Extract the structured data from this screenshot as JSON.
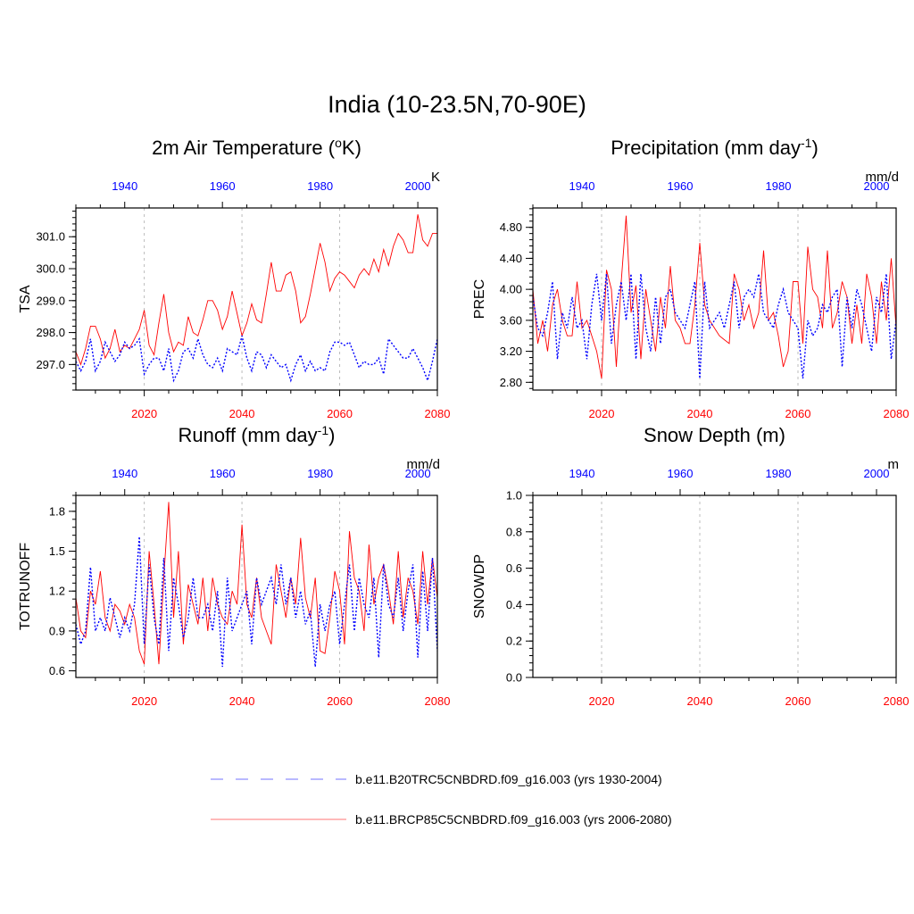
{
  "title": "India (10-23.5N,70-90E)",
  "legend": [
    {
      "label": "b.e11.B20TRC5CNBDRD.f09_g16.003 (yrs 1930-2004)",
      "color": "#0000ff",
      "dash": "dashed"
    },
    {
      "label": "b.e11.BRCP85C5CNBDRD.f09_g16.003 (yrs 2006-2080)",
      "color": "#ff0000",
      "dash": "solid"
    }
  ],
  "colors": {
    "historical": "#0000ff",
    "future": "#ff0000",
    "axis": "#000000",
    "grid": "#bbbbbb"
  },
  "chart_data": [
    {
      "type": "line",
      "title": "2m Air Temperature (°K)",
      "title_sup": "o",
      "title_pre": "2m Air Temperature (",
      "title_post": "K)",
      "ylabel": "TSA",
      "unit": "K",
      "ylim": [
        296.2,
        301.9
      ],
      "yticks": [
        297.0,
        298.0,
        299.0,
        300.0,
        301.0
      ],
      "ytick_labels": [
        "297.0",
        "298.0",
        "299.0",
        "300.0",
        "301.0"
      ],
      "x_bottom": {
        "range": [
          2006,
          2080
        ],
        "ticks": [
          2020,
          2040,
          2060,
          2080
        ]
      },
      "x_top": {
        "range": [
          1930,
          2004
        ],
        "ticks": [
          1940,
          1960,
          1980,
          2000
        ]
      },
      "grid": "vertical dotted at major x ticks",
      "series": [
        {
          "period": "2006-2080",
          "style": "solid red",
          "values": [
            297.4,
            297.0,
            297.5,
            298.2,
            298.2,
            297.8,
            297.2,
            297.5,
            298.1,
            297.4,
            297.6,
            297.5,
            297.8,
            298.1,
            298.7,
            297.6,
            297.3,
            298.3,
            299.2,
            298.0,
            297.4,
            297.7,
            297.6,
            298.5,
            298.0,
            297.9,
            298.4,
            299.0,
            299.0,
            298.7,
            298.1,
            298.5,
            299.3,
            298.6,
            297.9,
            298.3,
            298.9,
            298.4,
            298.3,
            299.2,
            300.2,
            299.3,
            299.3,
            299.8,
            299.9,
            299.3,
            298.3,
            298.5,
            299.2,
            300.0,
            300.8,
            300.2,
            299.3,
            299.7,
            299.9,
            299.8,
            299.6,
            299.4,
            299.8,
            300.0,
            299.8,
            300.3,
            299.9,
            300.6,
            300.1,
            300.7,
            301.1,
            300.9,
            300.5,
            300.5,
            301.7,
            300.9,
            300.7,
            301.1,
            301.1
          ]
        },
        {
          "period": "1930-2004",
          "style": "dashed blue",
          "values": [
            297.1,
            296.8,
            297.1,
            297.8,
            296.8,
            297.1,
            297.7,
            297.4,
            297.1,
            297.3,
            297.7,
            297.5,
            297.6,
            297.8,
            296.7,
            297.0,
            297.2,
            297.2,
            296.8,
            297.5,
            296.5,
            296.8,
            297.4,
            297.5,
            297.2,
            297.8,
            297.3,
            297.0,
            296.9,
            297.2,
            296.8,
            297.5,
            297.4,
            297.3,
            297.9,
            297.2,
            296.8,
            297.4,
            297.3,
            296.9,
            297.3,
            297.1,
            296.9,
            297.0,
            296.5,
            297.0,
            297.3,
            296.8,
            297.1,
            296.8,
            296.9,
            296.8,
            297.4,
            297.7,
            297.7,
            297.6,
            297.7,
            297.3,
            296.9,
            297.1,
            297.0,
            297.0,
            297.2,
            296.7,
            297.8,
            297.6,
            297.4,
            297.2,
            297.2,
            297.5,
            297.2,
            296.9,
            296.5,
            297.1,
            297.8
          ]
        }
      ]
    },
    {
      "type": "line",
      "title": "Precipitation (mm day-1)",
      "title_pre": "Precipitation (mm day",
      "title_sup": "-1",
      "title_post": ")",
      "ylabel": "PREC",
      "unit": "mm/d",
      "ylim": [
        2.7,
        5.05
      ],
      "yticks": [
        2.8,
        3.2,
        3.6,
        4.0,
        4.4,
        4.8
      ],
      "ytick_labels": [
        "2.80",
        "3.20",
        "3.60",
        "4.00",
        "4.40",
        "4.80"
      ],
      "x_bottom": {
        "range": [
          2006,
          2080
        ],
        "ticks": [
          2020,
          2040,
          2060,
          2080
        ]
      },
      "x_top": {
        "range": [
          1930,
          2004
        ],
        "ticks": [
          1940,
          1960,
          1980,
          2000
        ]
      },
      "grid": "vertical dotted at major x ticks",
      "series": [
        {
          "period": "2006-2080",
          "style": "solid red",
          "values": [
            4.0,
            3.3,
            3.6,
            3.2,
            3.8,
            4.0,
            3.6,
            3.4,
            3.4,
            4.1,
            3.5,
            3.6,
            3.4,
            3.2,
            2.85,
            4.25,
            4.0,
            3.0,
            4.1,
            4.95,
            3.7,
            4.05,
            3.1,
            4.0,
            3.6,
            3.2,
            3.9,
            3.5,
            4.3,
            3.6,
            3.5,
            3.3,
            3.3,
            3.8,
            4.6,
            3.8,
            3.6,
            3.5,
            3.4,
            3.35,
            3.3,
            4.2,
            4.0,
            3.6,
            3.8,
            3.5,
            3.7,
            4.5,
            3.6,
            3.7,
            3.4,
            3.0,
            3.2,
            4.1,
            4.1,
            3.3,
            4.55,
            4.0,
            3.9,
            3.5,
            4.5,
            3.5,
            3.7,
            4.1,
            3.9,
            3.3,
            3.8,
            3.3,
            4.2,
            3.9,
            3.3,
            4.1,
            3.6,
            4.4,
            3.5
          ]
        },
        {
          "period": "1930-2004",
          "style": "dashed blue",
          "values": [
            3.9,
            3.5,
            3.4,
            3.7,
            4.1,
            3.1,
            3.7,
            3.5,
            3.9,
            3.5,
            3.6,
            3.1,
            3.8,
            4.2,
            3.6,
            4.2,
            3.3,
            3.8,
            4.1,
            3.6,
            4.2,
            3.1,
            4.2,
            3.5,
            3.2,
            3.9,
            3.3,
            3.9,
            4.0,
            3.7,
            3.6,
            3.5,
            3.8,
            4.1,
            2.85,
            4.1,
            3.5,
            3.6,
            3.7,
            3.5,
            3.8,
            4.1,
            3.5,
            3.9,
            4.0,
            3.9,
            4.2,
            3.7,
            3.6,
            3.5,
            3.8,
            4.0,
            3.7,
            3.6,
            3.5,
            2.85,
            3.6,
            3.4,
            3.5,
            3.8,
            3.7,
            3.9,
            4.0,
            3.0,
            3.9,
            3.5,
            4.0,
            3.8,
            3.5,
            3.2,
            3.9,
            3.7,
            4.2,
            3.1,
            3.6
          ]
        }
      ]
    },
    {
      "type": "line",
      "title": "Runoff (mm day-1)",
      "title_pre": "Runoff (mm day",
      "title_sup": "-1",
      "title_post": ")",
      "ylabel": "TOTRUNOFF",
      "unit": "mm/d",
      "ylim": [
        0.55,
        1.92
      ],
      "yticks": [
        0.6,
        0.9,
        1.2,
        1.5,
        1.8
      ],
      "ytick_labels": [
        "0.6",
        "0.9",
        "1.2",
        "1.5",
        "1.8"
      ],
      "x_bottom": {
        "range": [
          2006,
          2080
        ],
        "ticks": [
          2020,
          2040,
          2060,
          2080
        ]
      },
      "x_top": {
        "range": [
          1930,
          2004
        ],
        "ticks": [
          1940,
          1960,
          1980,
          2000
        ]
      },
      "grid": "vertical dotted at major x ticks",
      "series": [
        {
          "period": "2006-2080",
          "style": "solid red",
          "values": [
            1.15,
            0.9,
            0.85,
            1.2,
            1.1,
            1.35,
            1.0,
            0.9,
            1.1,
            1.05,
            0.95,
            1.1,
            1.0,
            0.75,
            0.65,
            1.5,
            1.1,
            0.65,
            1.3,
            1.87,
            1.0,
            1.5,
            0.8,
            1.25,
            1.1,
            0.95,
            1.3,
            0.9,
            1.3,
            1.1,
            1.0,
            0.95,
            1.2,
            1.1,
            1.7,
            1.1,
            1.0,
            1.3,
            1.0,
            0.9,
            0.8,
            1.4,
            1.2,
            1.0,
            1.3,
            1.1,
            1.6,
            1.15,
            1.0,
            1.3,
            0.75,
            0.73,
            1.0,
            1.35,
            1.2,
            0.8,
            1.65,
            1.3,
            1.2,
            0.9,
            1.55,
            1.1,
            1.3,
            1.4,
            1.2,
            0.95,
            1.5,
            1.0,
            1.3,
            1.2,
            0.95,
            1.5,
            1.1,
            1.45,
            1.15
          ]
        },
        {
          "period": "1930-2004",
          "style": "dashed blue",
          "values": [
            0.95,
            0.8,
            0.9,
            1.38,
            0.9,
            1.0,
            0.9,
            1.15,
            1.0,
            0.85,
            1.0,
            0.9,
            1.1,
            1.61,
            0.8,
            1.4,
            1.0,
            0.8,
            1.45,
            0.75,
            1.3,
            1.1,
            0.85,
            1.0,
            1.3,
            1.0,
            1.0,
            1.1,
            0.9,
            1.2,
            0.63,
            1.3,
            0.9,
            1.0,
            1.1,
            1.2,
            0.8,
            1.3,
            1.1,
            1.2,
            1.3,
            1.1,
            1.4,
            1.1,
            1.3,
            1.0,
            1.2,
            0.95,
            1.05,
            0.63,
            1.1,
            0.9,
            1.1,
            1.2,
            0.8,
            1.1,
            1.4,
            0.9,
            1.3,
            1.1,
            1.0,
            1.3,
            0.7,
            1.4,
            1.1,
            1.0,
            1.3,
            0.9,
            1.2,
            1.4,
            0.7,
            1.35,
            0.9,
            1.45,
            0.75
          ]
        }
      ]
    },
    {
      "type": "line",
      "title": "Snow Depth (m)",
      "title_pre": "Snow Depth (m)",
      "title_sup": "",
      "title_post": "",
      "ylabel": "SNOWDP",
      "unit": "m",
      "ylim": [
        0.0,
        1.0
      ],
      "yticks": [
        0.0,
        0.2,
        0.4,
        0.6,
        0.8,
        1.0
      ],
      "ytick_labels": [
        "0.0",
        "0.2",
        "0.4",
        "0.6",
        "0.8",
        "1.0"
      ],
      "x_bottom": {
        "range": [
          2006,
          2080
        ],
        "ticks": [
          2020,
          2040,
          2060,
          2080
        ]
      },
      "x_top": {
        "range": [
          1930,
          2004
        ],
        "ticks": [
          1940,
          1960,
          1980,
          2000
        ]
      },
      "grid": "vertical dotted at major x ticks",
      "series": []
    }
  ]
}
